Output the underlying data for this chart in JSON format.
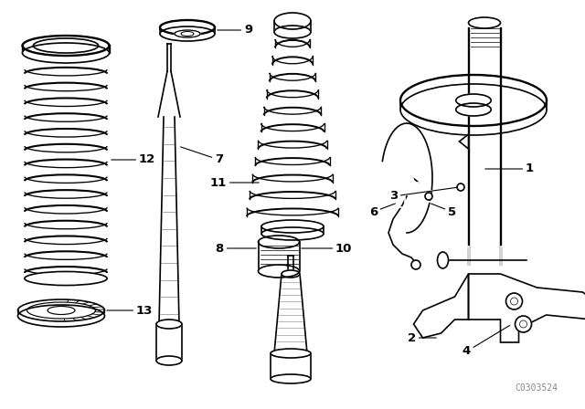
{
  "bg_color": "#ffffff",
  "line_color": "#000000",
  "label_color": "#000000",
  "fig_width": 6.4,
  "fig_height": 4.48,
  "dpi": 100,
  "watermark": "C0303524"
}
